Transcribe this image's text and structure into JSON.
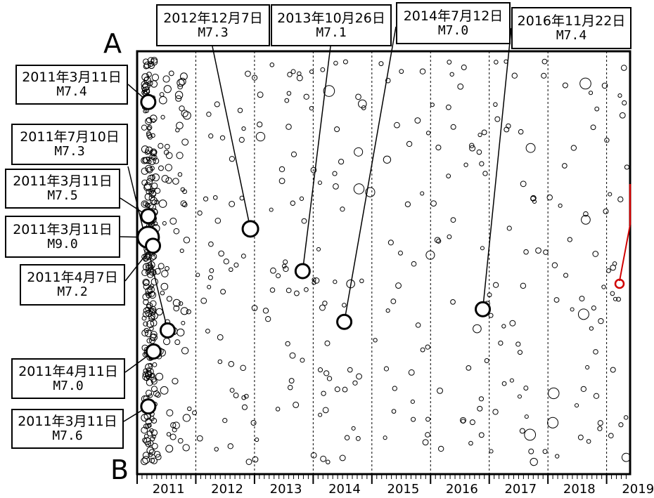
{
  "chart_data": {
    "type": "scatter",
    "x_axis_ticks": [
      "2011",
      "2012",
      "2013",
      "2014",
      "2015",
      "2016",
      "2017",
      "2018",
      "2019"
    ],
    "xlim": [
      2011.0,
      2019.4
    ],
    "section_labels": {
      "top": "A",
      "bottom": "B"
    },
    "grid": "vertical dashed lines at each year",
    "colors": {
      "marker": "#000000",
      "highlight": "#d00000",
      "background": "#ffffff"
    },
    "labeled_events": [
      {
        "date": "2011年3月11日",
        "magnitude": "M7.4",
        "t": 2011.19,
        "pos": 0.12
      },
      {
        "date": "2011年7月10日",
        "magnitude": "M7.3",
        "t": 2011.52,
        "pos": 0.66
      },
      {
        "date": "2011年3月11日",
        "magnitude": "M7.5",
        "t": 2011.19,
        "pos": 0.39
      },
      {
        "date": "2011年3月11日",
        "magnitude": "M9.0",
        "t": 2011.19,
        "pos": 0.44
      },
      {
        "date": "2011年4月7日",
        "magnitude": "M7.2",
        "t": 2011.27,
        "pos": 0.46
      },
      {
        "date": "2011年4月11日",
        "magnitude": "M7.0",
        "t": 2011.28,
        "pos": 0.71
      },
      {
        "date": "2011年3月11日",
        "magnitude": "M7.6",
        "t": 2011.19,
        "pos": 0.84
      },
      {
        "date": "2012年12月7日",
        "magnitude": "M7.3",
        "t": 2012.93,
        "pos": 0.42
      },
      {
        "date": "2013年10月26日",
        "magnitude": "M7.1",
        "t": 2013.82,
        "pos": 0.52
      },
      {
        "date": "2014年7月12日",
        "magnitude": "M7.0",
        "t": 2014.53,
        "pos": 0.64
      },
      {
        "date": "2016年11月22日",
        "magnitude": "M7.4",
        "t": 2016.89,
        "pos": 0.61
      }
    ]
  }
}
